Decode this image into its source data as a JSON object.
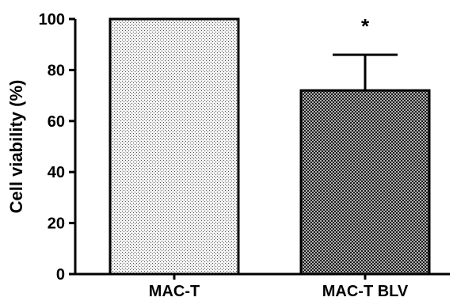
{
  "chart_data": {
    "type": "bar",
    "categories": [
      "MAC-T",
      "MAC-T BLV"
    ],
    "values": [
      100,
      72
    ],
    "error_bars": [
      0,
      14
    ],
    "ylabel": "Cell viability (%)",
    "xlabel": "",
    "ylim": [
      0,
      100
    ],
    "yticks": [
      0,
      20,
      40,
      60,
      80,
      100
    ],
    "annotations": [
      {
        "category": "MAC-T BLV",
        "text": "*"
      }
    ],
    "bar_fills": [
      "light-dotted",
      "dark-checker"
    ],
    "grid": false,
    "legend": "none"
  }
}
